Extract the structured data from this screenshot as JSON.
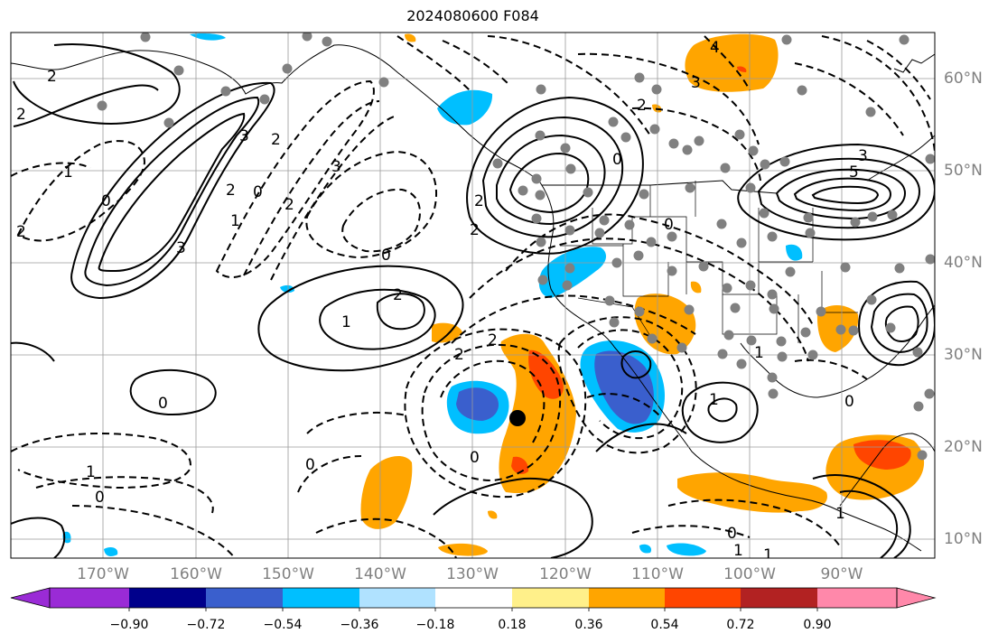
{
  "title": "2024080600 F084",
  "lon_labels": [
    "170°W",
    "160°W",
    "150°W",
    "140°W",
    "130°W",
    "120°W",
    "110°W",
    "100°W",
    "90°W"
  ],
  "lat_labels": [
    "60°N",
    "50°N",
    "40°N",
    "30°N",
    "20°N",
    "10°N"
  ],
  "colorbar": {
    "ticks": [
      "−0.90",
      "−0.72",
      "−0.54",
      "−0.36",
      "−0.18",
      "0.18",
      "0.36",
      "0.54",
      "0.72",
      "0.90"
    ],
    "colors": [
      "#9a2bd6",
      "#00008b",
      "#3a5fcd",
      "#00bfff",
      "#b0e2ff",
      "#ffffff",
      "#fff08a",
      "#ffa500",
      "#ff4500",
      "#b22222",
      "#ff88aa"
    ]
  },
  "contour_labels": [
    "4",
    "3",
    "2",
    "2",
    "1",
    "0",
    "3",
    "3",
    "2",
    "2",
    "3",
    "2",
    "1",
    "0",
    "0",
    "2",
    "2",
    "1",
    "2",
    "0",
    "2",
    "2",
    "0",
    "1",
    "0",
    "1",
    "0",
    "0",
    "0",
    "0",
    "1",
    "1",
    "0",
    "1",
    "2",
    "2",
    "3",
    "5",
    "1"
  ],
  "marker": "storm-center-dot"
}
